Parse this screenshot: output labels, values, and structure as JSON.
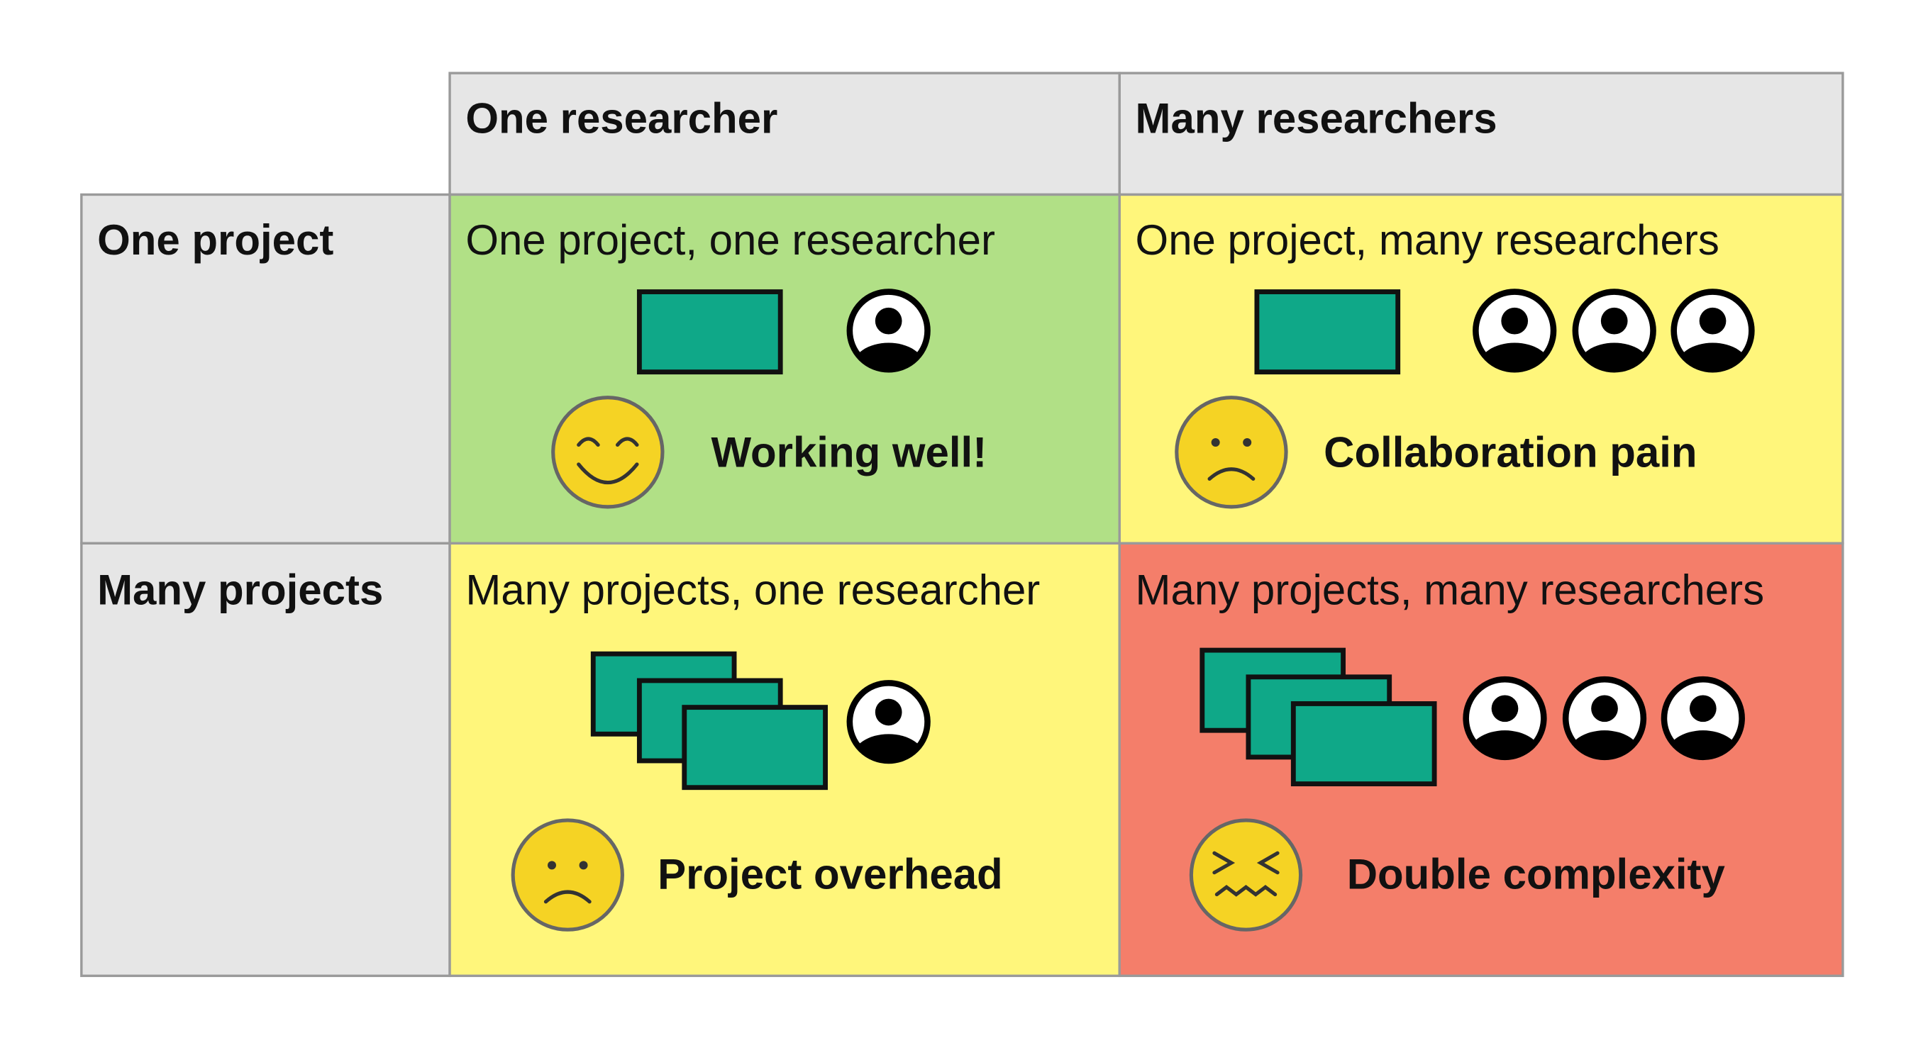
{
  "table": {
    "column_headers": [
      "One researcher",
      "Many researchers"
    ],
    "rows": [
      {
        "header": "One project",
        "cells": [
          {
            "title": "One project, one researcher",
            "caption": "Working well!"
          },
          {
            "title": "One project, many researchers",
            "caption": "Collaboration pain"
          }
        ]
      },
      {
        "header": "Many projects",
        "cells": [
          {
            "title": "Many projects, one researcher",
            "caption": "Project overhead"
          },
          {
            "title": "Many projects, many researchers",
            "caption": "Double complexity"
          }
        ]
      }
    ]
  }
}
